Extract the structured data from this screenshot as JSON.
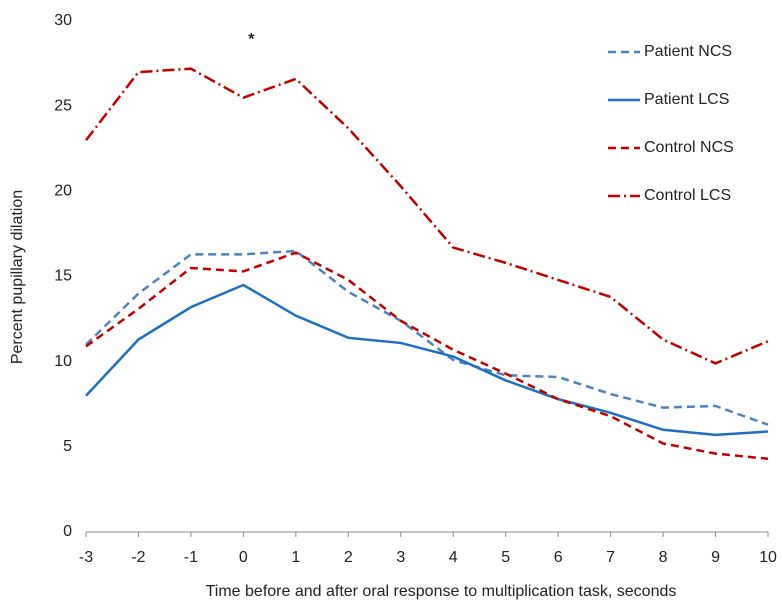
{
  "chart_data": {
    "type": "line",
    "x": [
      -3,
      -2,
      -1,
      0,
      1,
      2,
      3,
      4,
      5,
      6,
      7,
      8,
      9,
      10
    ],
    "xlim": [
      -3,
      10
    ],
    "xticks": [
      -3,
      -2,
      -1,
      0,
      1,
      2,
      3,
      4,
      5,
      6,
      7,
      8,
      9,
      10
    ],
    "ylim": [
      0,
      30
    ],
    "yticks": [
      0,
      5,
      10,
      15,
      20,
      25,
      30
    ],
    "xlabel": "Time before and after oral response to multiplication task, seconds",
    "ylabel": "Percent pupillary dilation",
    "annotation": "*",
    "grid": false,
    "legend": "top-right",
    "series": [
      {
        "name": "Patient NCS",
        "color": "#4f81bd",
        "dash": "dashed",
        "values": [
          11.0,
          14.0,
          16.3,
          16.3,
          16.5,
          14.1,
          12.4,
          10.1,
          9.2,
          9.1,
          8.1,
          7.3,
          7.4,
          6.3
        ]
      },
      {
        "name": "Patient LCS",
        "color": "#1f6fc0",
        "dash": "solid",
        "values": [
          8.0,
          11.3,
          13.2,
          14.5,
          12.7,
          11.4,
          11.1,
          10.3,
          8.9,
          7.8,
          7.0,
          6.0,
          5.7,
          5.9
        ]
      },
      {
        "name": "Control NCS",
        "color": "#c00000",
        "dash": "dashed",
        "values": [
          10.9,
          13.1,
          15.5,
          15.3,
          16.4,
          14.8,
          12.4,
          10.7,
          9.3,
          7.8,
          6.8,
          5.2,
          4.6,
          4.3
        ]
      },
      {
        "name": "Control LCS",
        "color": "#c00000",
        "dash": "dashdot",
        "values": [
          23.0,
          27.0,
          27.2,
          25.5,
          26.6,
          23.7,
          20.3,
          16.7,
          15.8,
          14.8,
          13.8,
          11.3,
          9.9,
          11.2
        ]
      }
    ]
  }
}
